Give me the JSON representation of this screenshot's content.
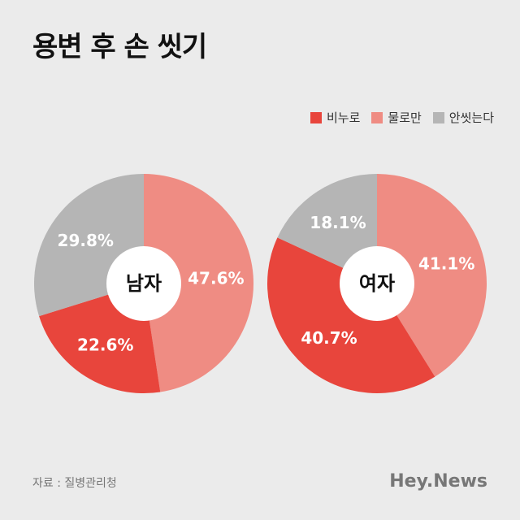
{
  "title": "용변 후 손 씻기",
  "source": "자료 : 질병관리청",
  "brand": "Hey.News",
  "colors": {
    "soap": "#e8453c",
    "water": "#ef8c83",
    "none": "#b5b5b5"
  },
  "legend": [
    {
      "label": "비누로",
      "color": "#e8453c"
    },
    {
      "label": "물로만",
      "color": "#ef8c83"
    },
    {
      "label": "안씻는다",
      "color": "#b5b5b5"
    }
  ],
  "chart_data": [
    {
      "type": "pie",
      "center_label": "남자",
      "slices": [
        {
          "name": "물로만",
          "value": 47.6,
          "label": "47.6%",
          "color": "#ef8c83"
        },
        {
          "name": "비누로",
          "value": 22.6,
          "label": "22.6%",
          "color": "#e8453c"
        },
        {
          "name": "안씻는다",
          "value": 29.8,
          "label": "29.8%",
          "color": "#b5b5b5"
        }
      ]
    },
    {
      "type": "pie",
      "center_label": "여자",
      "slices": [
        {
          "name": "물로만",
          "value": 41.1,
          "label": "41.1%",
          "color": "#ef8c83"
        },
        {
          "name": "비누로",
          "value": 40.7,
          "label": "40.7%",
          "color": "#e8453c"
        },
        {
          "name": "안씻는다",
          "value": 18.1,
          "label": "18.1%",
          "color": "#b5b5b5"
        }
      ]
    }
  ]
}
